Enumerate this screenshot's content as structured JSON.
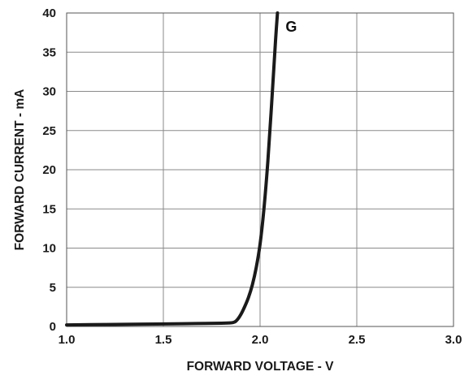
{
  "chart_data": {
    "type": "line",
    "title": "",
    "xlabel": "FORWARD VOLTAGE - V",
    "ylabel": "FORWARD CURRENT - mA",
    "xlim": [
      1.0,
      3.0
    ],
    "ylim": [
      0,
      40
    ],
    "x_ticks": [
      "1.0",
      "1.5",
      "2.0",
      "2.5",
      "3.0"
    ],
    "y_ticks": [
      "0",
      "5",
      "10",
      "15",
      "20",
      "25",
      "30",
      "35",
      "40"
    ],
    "grid": true,
    "series": [
      {
        "name": "G",
        "color": "#1a1a1a",
        "x": [
          1.0,
          1.2,
          1.4,
          1.6,
          1.8,
          1.86,
          1.88,
          1.9,
          1.92,
          1.94,
          1.96,
          1.98,
          2.0,
          2.02,
          2.04,
          2.06,
          2.08,
          2.09
        ],
        "y": [
          0.2,
          0.25,
          0.3,
          0.35,
          0.42,
          0.5,
          0.8,
          1.5,
          2.5,
          3.7,
          5.3,
          7.5,
          10.5,
          15,
          21,
          28.5,
          36.5,
          40
        ]
      }
    ]
  }
}
